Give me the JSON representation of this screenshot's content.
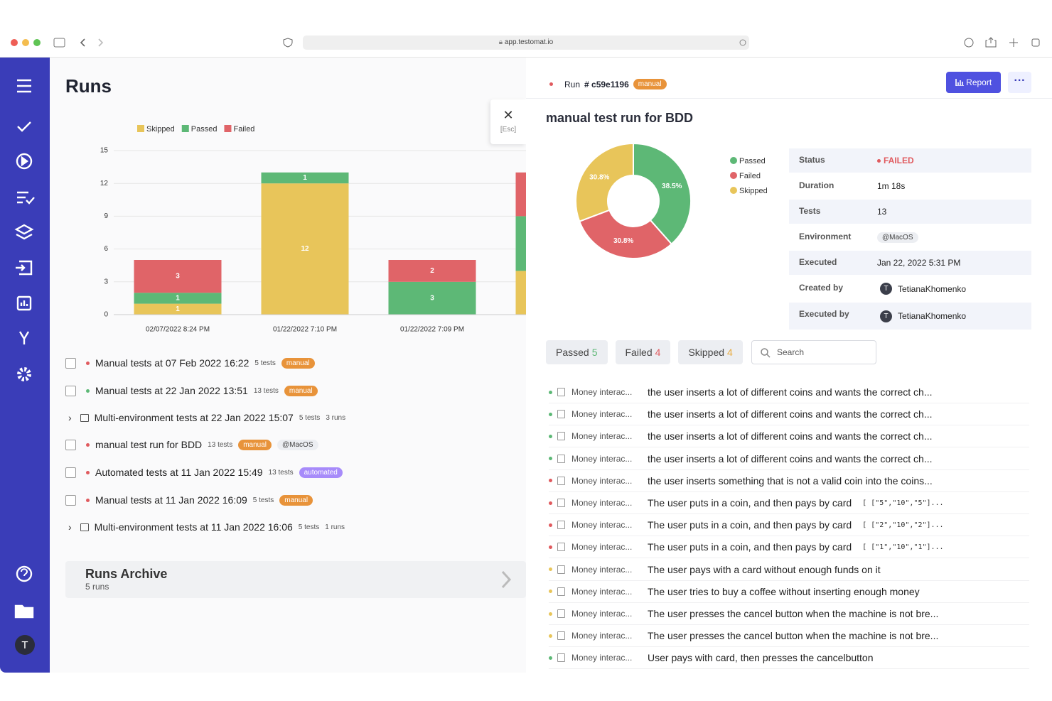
{
  "browser": {
    "url": "app.testomat.io"
  },
  "sidebar": {
    "avatar": "T"
  },
  "runs": {
    "title": "Runs",
    "items": [
      {
        "dot": "#e05a5e",
        "name": "Manual tests at 07 Feb 2022 16:22",
        "tests": "5 tests",
        "badge": "manual",
        "badge_color": "#e8933a"
      },
      {
        "dot": "#5db876",
        "name": "Manual tests at 22 Jan 2022 13:51",
        "tests": "13 tests",
        "badge": "manual",
        "badge_color": "#e8933a"
      },
      {
        "group": true,
        "name": "Multi-environment tests at 22 Jan 2022 15:07",
        "tests": "5 tests",
        "runs": "3 runs"
      },
      {
        "dot": "#e05a5e",
        "name": "manual test run for BDD",
        "tests": "13 tests",
        "badge": "manual",
        "badge_color": "#e8933a",
        "tag": "@MacOS"
      },
      {
        "dot": "#e05a5e",
        "name": "Automated tests at 11 Jan 2022 15:49",
        "tests": "13 tests",
        "badge": "automated",
        "badge_color": "#a78bfa"
      },
      {
        "dot": "#e05a5e",
        "name": "Manual tests at 11 Jan 2022 16:09",
        "tests": "5 tests",
        "badge": "manual",
        "badge_color": "#e8933a"
      },
      {
        "group": true,
        "name": "Multi-environment tests at 11 Jan 2022 16:06",
        "tests": "5 tests",
        "runs": "1 runs"
      }
    ],
    "archive": {
      "title": "Runs Archive",
      "count": "5 runs"
    }
  },
  "chart_data": [
    {
      "type": "bar",
      "stacked": true,
      "categories": [
        "02/07/2022 8:24 PM",
        "01/22/2022 7:10 PM",
        "01/22/2022 7:09 PM",
        null
      ],
      "series": [
        {
          "name": "Skipped",
          "color": "#e8c55a",
          "values": [
            1,
            12,
            0,
            4
          ]
        },
        {
          "name": "Passed",
          "color": "#5db876",
          "values": [
            1,
            1,
            3,
            5
          ]
        },
        {
          "name": "Failed",
          "color": "#e06468",
          "values": [
            3,
            0,
            2,
            4
          ]
        }
      ],
      "ylim": [
        0,
        15
      ],
      "yticks": [
        0,
        3,
        6,
        9,
        12,
        15
      ],
      "grid": true
    },
    {
      "type": "pie",
      "donut": true,
      "categories": [
        "Passed",
        "Failed",
        "Skipped"
      ],
      "values": [
        38.5,
        30.8,
        30.8
      ],
      "value_labels": [
        "38.5%",
        "30.8%",
        "30.8%"
      ],
      "colors": [
        "#5db876",
        "#e06468",
        "#e8c55a"
      ]
    }
  ],
  "close": {
    "label": "[Esc]"
  },
  "run": {
    "label": "Run",
    "id": "# c59e1196",
    "badge": "manual",
    "report": "Report",
    "title": "manual test run for BDD",
    "details": [
      {
        "label": "Status",
        "value": "FAILED",
        "kind": "status"
      },
      {
        "label": "Duration",
        "value": "1m 18s"
      },
      {
        "label": "Tests",
        "value": "13"
      },
      {
        "label": "Environment",
        "value": "@MacOS",
        "kind": "tag"
      },
      {
        "label": "Executed",
        "value": "Jan 22, 2022 5:31 PM"
      },
      {
        "label": "Created by",
        "value": "TetianaKhomenko",
        "avatar": "T"
      },
      {
        "label": "Executed by",
        "value": "TetianaKhomenko",
        "avatar": "T"
      }
    ],
    "filters": [
      {
        "label": "Passed",
        "count": 5,
        "color": "#5db876"
      },
      {
        "label": "Failed",
        "count": 4,
        "color": "#e05a5e"
      },
      {
        "label": "Skipped",
        "count": 4,
        "color": "#e8a93a"
      }
    ],
    "search": "Search",
    "tests": [
      {
        "dot": "#5db876",
        "suite": "Money interac...",
        "title": "the user inserts a lot of different coins and wants the correct ch..."
      },
      {
        "dot": "#5db876",
        "suite": "Money interac...",
        "title": "the user inserts a lot of different coins and wants the correct ch..."
      },
      {
        "dot": "#5db876",
        "suite": "Money interac...",
        "title": "the user inserts a lot of different coins and wants the correct ch..."
      },
      {
        "dot": "#5db876",
        "suite": "Money interac...",
        "title": "the user inserts a lot of different coins and wants the correct ch..."
      },
      {
        "dot": "#e05a5e",
        "suite": "Money interac...",
        "title": "the user inserts something that is not a valid coin into the coins..."
      },
      {
        "dot": "#e05a5e",
        "suite": "Money interac...",
        "title": "The user puts in a coin, and then pays by card",
        "params": "[ [\"5\",\"10\",\"5\"]..."
      },
      {
        "dot": "#e05a5e",
        "suite": "Money interac...",
        "title": "The user puts in a coin, and then pays by card",
        "params": "[ [\"2\",\"10\",\"2\"]..."
      },
      {
        "dot": "#e05a5e",
        "suite": "Money interac...",
        "title": "The user puts in a coin, and then pays by card",
        "params": "[ [\"1\",\"10\",\"1\"]..."
      },
      {
        "dot": "#e8c55a",
        "suite": "Money interac...",
        "title": "The user pays with a card without enough funds on it"
      },
      {
        "dot": "#e8c55a",
        "suite": "Money interac...",
        "title": "The user tries to buy a coffee without inserting enough money"
      },
      {
        "dot": "#e8c55a",
        "suite": "Money interac...",
        "title": "The user presses the cancel button when the machine is not bre..."
      },
      {
        "dot": "#e8c55a",
        "suite": "Money interac...",
        "title": "The user presses the cancel button when the machine is not bre..."
      },
      {
        "dot": "#5db876",
        "suite": "Money interac...",
        "title": "User pays with card, then presses the cancelbutton"
      }
    ]
  }
}
